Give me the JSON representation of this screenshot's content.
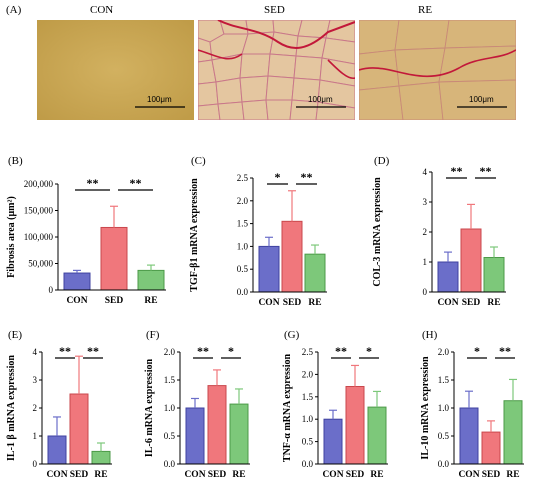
{
  "panel_a": {
    "label": "(A)",
    "images": [
      {
        "title": "CON",
        "scale": "100μm",
        "bg": "#c9a652"
      },
      {
        "title": "SED",
        "scale": "100μm",
        "bg": "#d7b487"
      },
      {
        "title": "RE",
        "scale": "100μm",
        "bg": "#cea86a"
      }
    ]
  },
  "colors": {
    "CON": "#6b6ec9",
    "SED": "#f0777c",
    "RE": "#7dc87a",
    "CON_edge": "#3f42a0",
    "SED_edge": "#c9474c",
    "RE_edge": "#4c9a48"
  },
  "chart_data": [
    {
      "id": "B",
      "panel_label": "(B)",
      "type": "bar",
      "categories": [
        "CON",
        "SED",
        "RE"
      ],
      "values": [
        32000,
        118000,
        37000
      ],
      "errors": [
        5000,
        40000,
        10000
      ],
      "ylabel": "Fibrosis area (μm²)",
      "ylim": [
        0,
        200000
      ],
      "yticks": [
        0,
        50000,
        100000,
        150000,
        200000
      ],
      "ytick_labels": [
        "0",
        "50,000",
        "100,000",
        "150,000",
        "200,000"
      ],
      "sig": [
        {
          "from": 0,
          "to": 1,
          "text": "**"
        },
        {
          "from": 1,
          "to": 2,
          "text": "**"
        }
      ]
    },
    {
      "id": "C",
      "panel_label": "(C)",
      "type": "bar",
      "categories": [
        "CON",
        "SED",
        "RE"
      ],
      "values": [
        1.0,
        1.55,
        0.83
      ],
      "errors": [
        0.2,
        0.67,
        0.2
      ],
      "ylabel": "TGF-β1 mRNA expression",
      "ylim": [
        0,
        2.5
      ],
      "yticks": [
        0,
        0.5,
        1.0,
        1.5,
        2.0,
        2.5
      ],
      "ytick_labels": [
        "0.0",
        "0.5",
        "1.0",
        "1.5",
        "2.0",
        "2.5"
      ],
      "sig": [
        {
          "from": 0,
          "to": 1,
          "text": "*"
        },
        {
          "from": 1,
          "to": 2,
          "text": "**"
        }
      ]
    },
    {
      "id": "D",
      "panel_label": "(D)",
      "type": "bar",
      "categories": [
        "CON",
        "SED",
        "RE"
      ],
      "values": [
        1.0,
        2.1,
        1.15
      ],
      "errors": [
        0.33,
        0.82,
        0.35
      ],
      "ylabel": "COL-3 mRNA expression",
      "ylim": [
        0,
        4
      ],
      "yticks": [
        0,
        1,
        2,
        3,
        4
      ],
      "ytick_labels": [
        "0",
        "1",
        "2",
        "3",
        "4"
      ],
      "sig": [
        {
          "from": 0,
          "to": 1,
          "text": "**"
        },
        {
          "from": 1,
          "to": 2,
          "text": "**"
        }
      ]
    },
    {
      "id": "E",
      "panel_label": "(E)",
      "type": "bar",
      "categories": [
        "CON",
        "SED",
        "RE"
      ],
      "values": [
        1.0,
        2.5,
        0.45
      ],
      "errors": [
        0.68,
        1.35,
        0.3
      ],
      "ylabel": "IL-1 β mRNA expression",
      "ylim": [
        0,
        4
      ],
      "yticks": [
        0,
        1,
        2,
        3,
        4
      ],
      "ytick_labels": [
        "0",
        "1",
        "2",
        "3",
        "4"
      ],
      "sig": [
        {
          "from": 0,
          "to": 1,
          "text": "**"
        },
        {
          "from": 1,
          "to": 2,
          "text": "**"
        }
      ]
    },
    {
      "id": "F",
      "panel_label": "(F)",
      "type": "bar",
      "categories": [
        "CON",
        "SED",
        "RE"
      ],
      "values": [
        1.0,
        1.4,
        1.07
      ],
      "errors": [
        0.17,
        0.28,
        0.27
      ],
      "ylabel": "IL-6 mRNA expression",
      "ylim": [
        0,
        2.0
      ],
      "yticks": [
        0,
        0.5,
        1.0,
        1.5,
        2.0
      ],
      "ytick_labels": [
        "0.0",
        "0.5",
        "1.0",
        "1.5",
        "2.0"
      ],
      "sig": [
        {
          "from": 0,
          "to": 1,
          "text": "**"
        },
        {
          "from": 1,
          "to": 2,
          "text": "*"
        }
      ]
    },
    {
      "id": "G",
      "panel_label": "(G)",
      "type": "bar",
      "categories": [
        "CON",
        "SED",
        "RE"
      ],
      "values": [
        1.0,
        1.73,
        1.27
      ],
      "errors": [
        0.2,
        0.47,
        0.35
      ],
      "ylabel": "TNF-α mRNA expression",
      "ylim": [
        0,
        2.5
      ],
      "yticks": [
        0,
        0.5,
        1.0,
        1.5,
        2.0,
        2.5
      ],
      "ytick_labels": [
        "0.0",
        "0.5",
        "1.0",
        "1.5",
        "2.0",
        "2.5"
      ],
      "sig": [
        {
          "from": 0,
          "to": 1,
          "text": "**"
        },
        {
          "from": 1,
          "to": 2,
          "text": "*"
        }
      ]
    },
    {
      "id": "H",
      "panel_label": "(H)",
      "type": "bar",
      "categories": [
        "CON",
        "SED",
        "RE"
      ],
      "values": [
        1.0,
        0.57,
        1.13
      ],
      "errors": [
        0.3,
        0.2,
        0.38
      ],
      "ylabel": "IL-10 mRNA expression",
      "ylim": [
        0,
        2.0
      ],
      "yticks": [
        0,
        0.5,
        1.0,
        1.5,
        2.0
      ],
      "ytick_labels": [
        "0.0",
        "0.5",
        "1.0",
        "1.5",
        "2.0"
      ],
      "sig": [
        {
          "from": 0,
          "to": 1,
          "text": "*"
        },
        {
          "from": 1,
          "to": 2,
          "text": "**"
        }
      ]
    }
  ]
}
